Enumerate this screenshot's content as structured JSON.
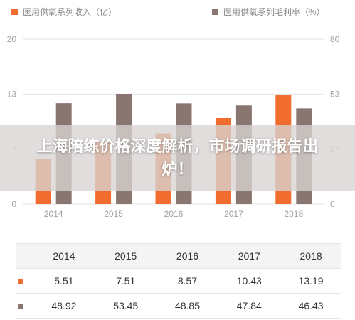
{
  "colors": {
    "income": "#f06c2f",
    "margin": "#8a7670",
    "axis": "#a0a0a0",
    "grid": "#e2e2e2"
  },
  "legend": {
    "income_label": "医用供氧系列收入（亿）",
    "margin_label": "医用供氧系列毛利率（%）"
  },
  "banner": {
    "text": "上海陪练价格深度解析，市场调研报告出炉！"
  },
  "chart_data": {
    "type": "bar",
    "categories": [
      "2014",
      "2015",
      "2016",
      "2017",
      "2018"
    ],
    "series": [
      {
        "name": "医用供氧系列收入（亿）",
        "axis": "left",
        "values": [
          5.51,
          7.51,
          8.57,
          10.43,
          13.19
        ]
      },
      {
        "name": "医用供氧系列毛利率（%）",
        "axis": "right",
        "values": [
          48.92,
          53.45,
          48.85,
          47.84,
          46.43
        ]
      }
    ],
    "y_left": {
      "ticks": [
        "20",
        "13",
        "7",
        "0"
      ],
      "ylim": [
        0,
        20
      ]
    },
    "y_right": {
      "ticks": [
        "80",
        "53",
        "27",
        "0"
      ],
      "ylim": [
        0,
        80
      ]
    },
    "grid": true,
    "legend_position": "top"
  },
  "table": {
    "headers": [
      "2014",
      "2015",
      "2016",
      "2017",
      "2018"
    ],
    "rows": [
      {
        "series": "income",
        "values": [
          "5.51",
          "7.51",
          "8.57",
          "10.43",
          "13.19"
        ]
      },
      {
        "series": "margin",
        "values": [
          "48.92",
          "53.45",
          "48.85",
          "47.84",
          "46.43"
        ]
      }
    ]
  }
}
